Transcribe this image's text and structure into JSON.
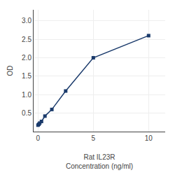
{
  "chart_data": {
    "type": "line",
    "x_label": "Rat IL23R\nConcentration (ng/ml)",
    "y_label": "OD",
    "x": [
      0.0,
      0.078,
      0.156,
      0.313,
      0.625,
      1.25,
      2.5,
      5.0,
      10.0
    ],
    "values": [
      0.175,
      0.2,
      0.23,
      0.275,
      0.42,
      0.6,
      1.1,
      2.0,
      2.6
    ],
    "color": "#1a3a6b",
    "marker": "square",
    "xlim": [
      -0.4,
      11.5
    ],
    "ylim": [
      0.0,
      3.3
    ],
    "xticks": [
      0,
      5,
      10
    ],
    "yticks": [
      0.5,
      {
        "value": 1.0,
        "label": "1.0"
      },
      1.5,
      {
        "value": 2.0,
        "label": "2.0"
      },
      2.5,
      {
        "value": 3.0,
        "label": "3.0"
      }
    ],
    "grid": true
  }
}
